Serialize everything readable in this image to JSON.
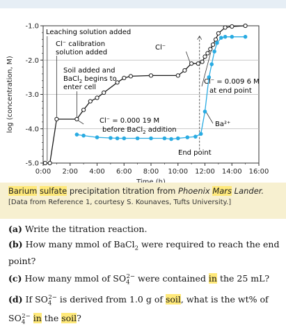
{
  "chart_data": {
    "type": "line",
    "xlabel": "Time (h)",
    "ylabel": "log (concentration, M)",
    "xlim": [
      0,
      16
    ],
    "ylim": [
      -5.0,
      -1.0
    ],
    "x_ticks": [
      "0:00",
      "2:00",
      "4:00",
      "6:00",
      "8:00",
      "10:00",
      "12:00",
      "14:00",
      "16:00"
    ],
    "y_ticks": [
      "-1.0",
      "-2.0",
      "-3.0",
      "-4.0",
      "-5.0"
    ],
    "grid": "horizontal",
    "series": [
      {
        "name": "Cl⁻",
        "color": "#1a1a1a",
        "marker": "open-circle",
        "points": [
          [
            0.15,
            -5.0
          ],
          [
            0.5,
            -5.0
          ],
          [
            1.0,
            -3.72
          ],
          [
            2.5,
            -3.72
          ],
          [
            3.0,
            -3.45
          ],
          [
            3.5,
            -3.2
          ],
          [
            4.0,
            -3.1
          ],
          [
            4.5,
            -2.95
          ],
          [
            5.5,
            -2.65
          ],
          [
            6.0,
            -2.52
          ],
          [
            6.5,
            -2.47
          ],
          [
            8.0,
            -2.45
          ],
          [
            10.0,
            -2.45
          ],
          [
            10.5,
            -2.3
          ],
          [
            11.0,
            -2.1
          ],
          [
            11.5,
            -2.1
          ],
          [
            11.8,
            -2.05
          ],
          [
            12.0,
            -1.9
          ],
          [
            12.2,
            -1.8
          ],
          [
            12.4,
            -1.68
          ],
          [
            12.6,
            -1.55
          ],
          [
            12.8,
            -1.4
          ],
          [
            13.0,
            -1.22
          ],
          [
            13.5,
            -1.05
          ],
          [
            14.0,
            -1.02
          ],
          [
            15.0,
            -1.0
          ]
        ]
      },
      {
        "name": "Ba²⁺",
        "color": "#29abe2",
        "marker": "filled-circle",
        "points": [
          [
            2.5,
            -4.17
          ],
          [
            3.0,
            -4.2
          ],
          [
            4.0,
            -4.25
          ],
          [
            5.0,
            -4.27
          ],
          [
            5.5,
            -4.28
          ],
          [
            6.0,
            -4.28
          ],
          [
            7.0,
            -4.28
          ],
          [
            8.0,
            -4.28
          ],
          [
            9.0,
            -4.28
          ],
          [
            9.5,
            -4.3
          ],
          [
            10.0,
            -4.28
          ],
          [
            10.7,
            -4.25
          ],
          [
            11.3,
            -4.23
          ],
          [
            11.7,
            -4.15
          ],
          [
            12.0,
            -3.5
          ],
          [
            12.3,
            -2.5
          ],
          [
            12.5,
            -2.12
          ],
          [
            12.7,
            -1.75
          ],
          [
            12.9,
            -1.5
          ],
          [
            13.2,
            -1.35
          ],
          [
            13.5,
            -1.32
          ],
          [
            14.0,
            -1.32
          ],
          [
            15.0,
            -1.32
          ]
        ]
      }
    ],
    "annotations": {
      "leaching": "Leaching solution added",
      "cl_calib_1": "Cl⁻ calibration",
      "cl_calib_2": "solution added",
      "soil_1_pre": "Soil",
      "soil_1_post": " added and",
      "soil_2_pre": "BaCl",
      "soil_2_sub": "2",
      "soil_2_post": " begins to",
      "soil_3": "enter cell",
      "cl_label": "Cl⁻",
      "cl_end_1": "Cl⁻ = 0.009 6 M",
      "cl_end_2": "at end point",
      "cl_before_1": "Cl⁻ = 0.000 19 M",
      "cl_before_2_pre": "before BaCl",
      "cl_before_2_sub": "2",
      "cl_before_2_post": " addition",
      "ba_label": "Ba²⁺",
      "end_point": "End point"
    }
  },
  "caption": {
    "part1": "Barium",
    "part2": " ",
    "part3": "sulfate",
    "part4": " precipitation titration from ",
    "italic1": "Phoenix",
    "space": " ",
    "italic2": "Mars",
    "space2": " ",
    "italic3": "Lander.",
    "source": "[Data from Reference 1, courtesy S. Kounaves, Tufts University.]"
  },
  "questions": [
    {
      "label": "(a)",
      "text": "Write the titration reaction."
    },
    {
      "label": "(b)",
      "text_pre": "How many mmol of BaCl",
      "sub": "2",
      "text_post": " were required to reach the end point?"
    },
    {
      "label": "(c)",
      "text_pre": "How many mmol of SO",
      "sub": "4",
      "sup": "2−",
      "text_mid": " were contained ",
      "hl": "in",
      "text_post": " the 25 mL?"
    },
    {
      "label": "(d)",
      "text_pre": "If SO",
      "sub": "4",
      "sup": "2−",
      "text_mid": " is derived from 1.0 g of ",
      "hl1": "soil",
      "text_mid2": ", what is the wt% of SO",
      "sub2": "4",
      "sup2": "2−",
      "space": " ",
      "hl2": "in",
      "text_mid3": " the ",
      "hl3": "soil",
      "text_post": "?"
    }
  ]
}
